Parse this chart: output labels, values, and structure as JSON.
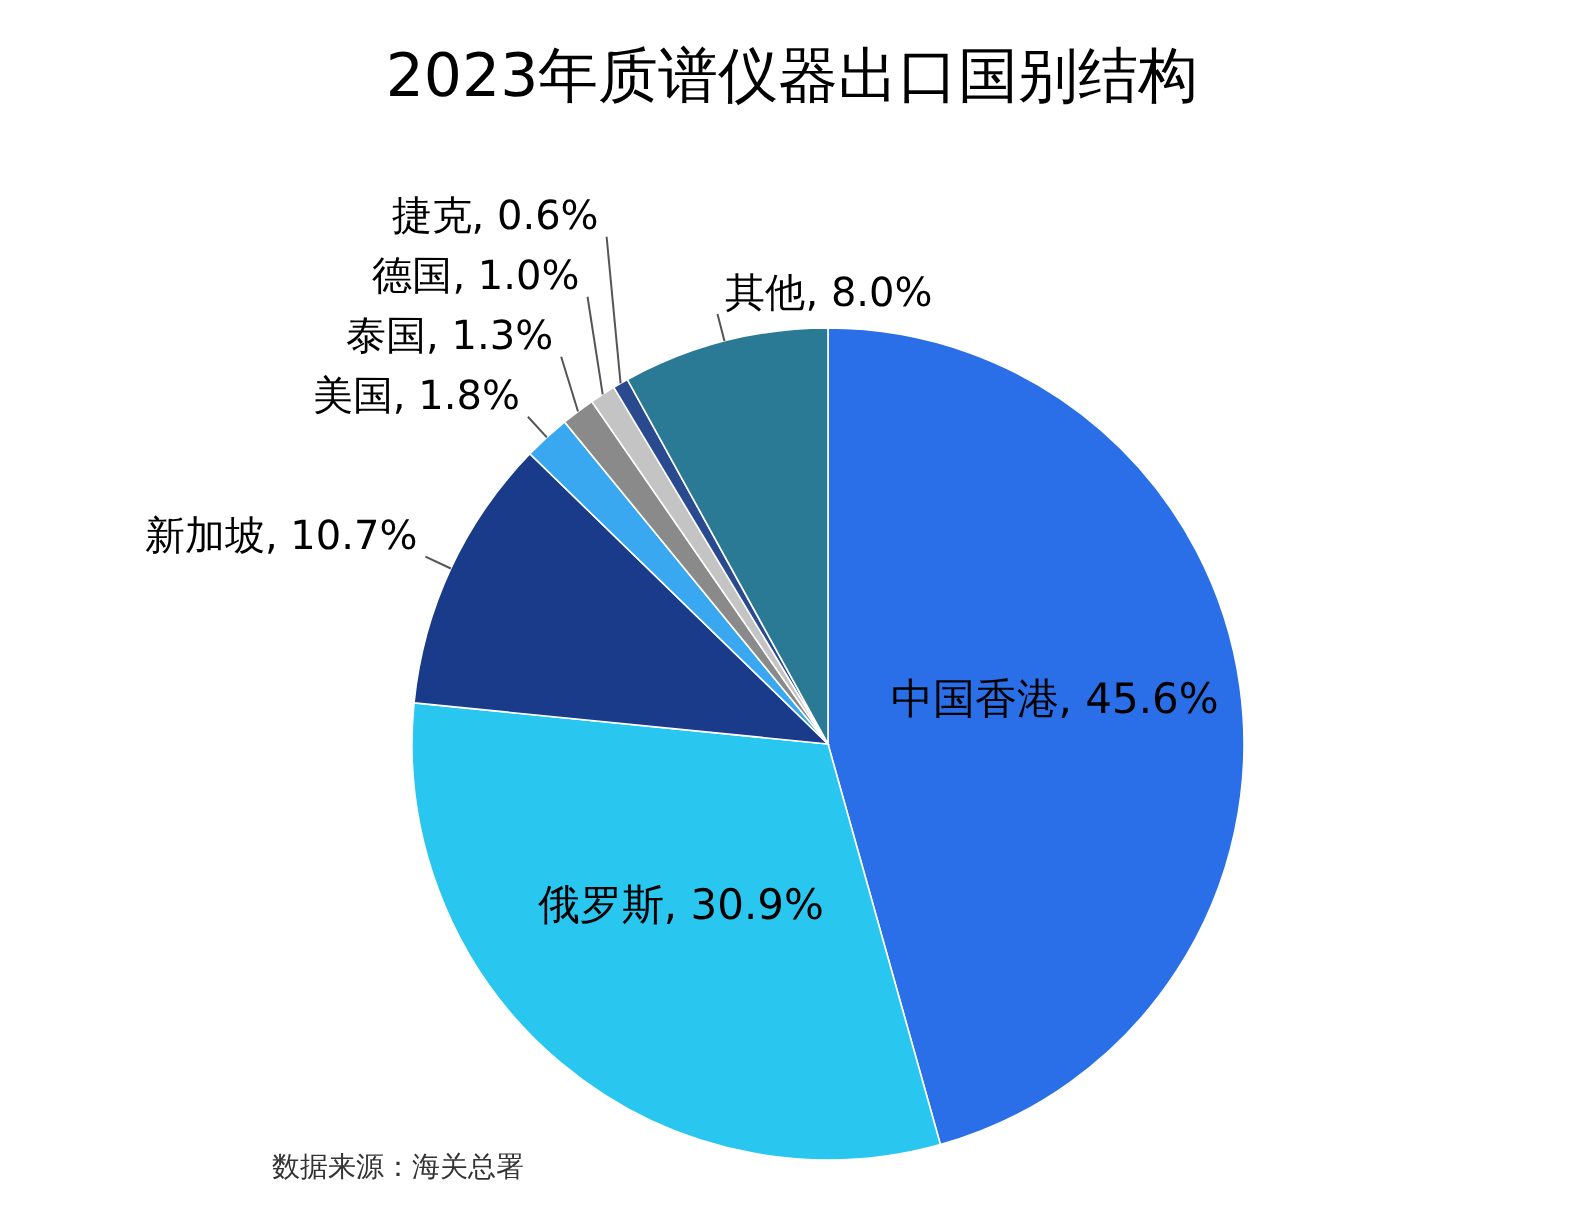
{
  "chart_data": {
    "type": "pie",
    "title": "2023年质谱仪器出口国别结构",
    "categories": [
      "中国香港",
      "俄罗斯",
      "新加坡",
      "美国",
      "泰国",
      "德国",
      "捷克",
      "其他"
    ],
    "values": [
      45.6,
      30.9,
      10.7,
      1.8,
      1.3,
      1.0,
      0.6,
      8.0
    ],
    "value_labels": [
      "45.6%",
      "30.9%",
      "10.7%",
      "1.8%",
      "1.3%",
      "1.0%",
      "0.6%",
      "8.0%"
    ],
    "colors": [
      "#2a6fe8",
      "#29c6f0",
      "#1a3a8a",
      "#3aa8f0",
      "#8a8a8a",
      "#c4c4c4",
      "#2a4a90",
      "#2a7a95"
    ],
    "annotations": [
      "数据来源：海关总署"
    ]
  }
}
